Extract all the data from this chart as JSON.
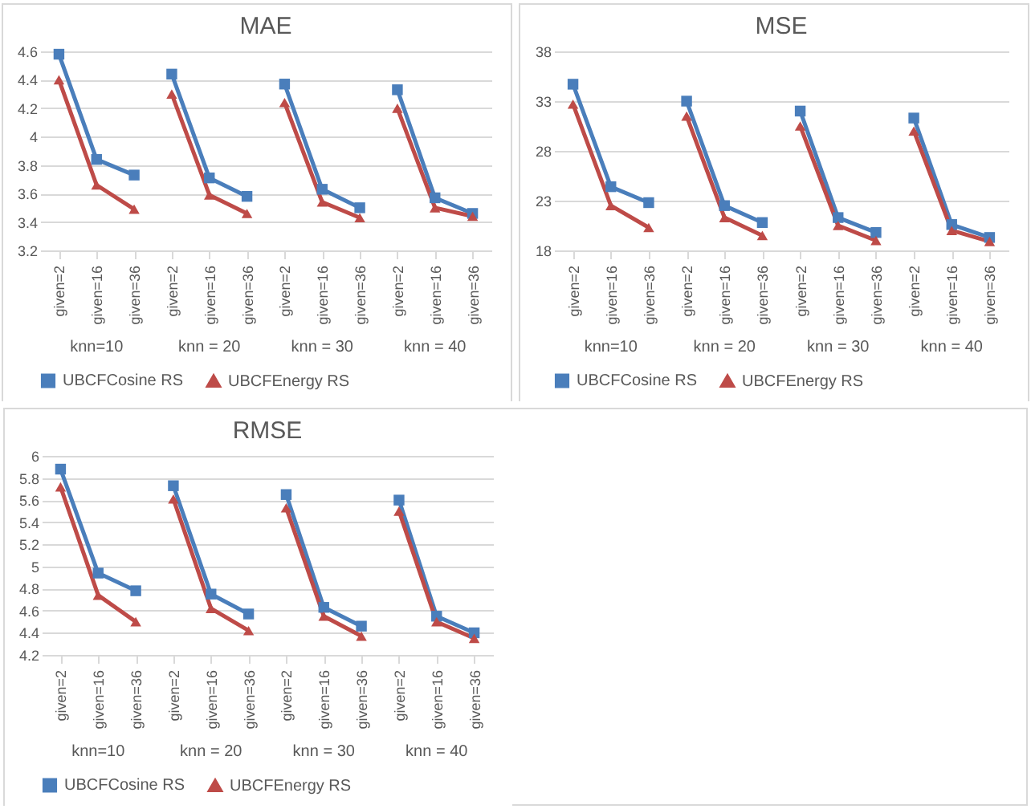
{
  "chart_data": [
    {
      "type": "line",
      "title": "MAE",
      "categories": [
        "given=2",
        "given=16",
        "given=36",
        "given=2",
        "given=16",
        "given=36",
        "given=2",
        "given=16",
        "given=36",
        "given=2",
        "given=16",
        "given=36"
      ],
      "annotations": [
        "knn=10",
        "knn = 20",
        "knn = 30",
        "knn = 40"
      ],
      "series": [
        {
          "name": "UBCFCosine RS",
          "color": "#4a7ebb",
          "marker": "square",
          "values": [
            4.58,
            3.84,
            3.73,
            4.44,
            3.71,
            3.58,
            4.37,
            3.63,
            3.5,
            4.33,
            3.57,
            3.46
          ]
        },
        {
          "name": "UBCFEnergy RS",
          "color": "#be4b48",
          "marker": "triangle",
          "values": [
            4.4,
            3.66,
            3.49,
            4.3,
            3.59,
            3.46,
            4.24,
            3.54,
            3.43,
            4.2,
            3.5,
            3.44
          ]
        }
      ],
      "ylim": [
        3.2,
        4.6
      ],
      "yticks": [
        3.2,
        3.4,
        3.6,
        3.8,
        4,
        4.2,
        4.4,
        4.6
      ],
      "grid": "y",
      "legend": "bottom"
    },
    {
      "type": "line",
      "title": "MSE",
      "categories": [
        "given=2",
        "given=16",
        "given=36",
        "given=2",
        "given=16",
        "given=36",
        "given=2",
        "given=16",
        "given=36",
        "given=2",
        "given=16",
        "given=36"
      ],
      "annotations": [
        "knn=10",
        "knn = 20",
        "knn = 30",
        "knn = 40"
      ],
      "series": [
        {
          "name": "UBCFCosine RS",
          "color": "#4a7ebb",
          "marker": "square",
          "values": [
            34.7,
            24.4,
            22.8,
            33.0,
            22.5,
            20.8,
            32.0,
            21.3,
            19.8,
            31.3,
            20.6,
            19.3
          ]
        },
        {
          "name": "UBCFEnergy RS",
          "color": "#be4b48",
          "marker": "triangle",
          "values": [
            32.7,
            22.5,
            20.3,
            31.5,
            21.3,
            19.5,
            30.5,
            20.5,
            19.0,
            30.0,
            20.0,
            18.9
          ]
        }
      ],
      "ylim": [
        18,
        38
      ],
      "yticks": [
        18,
        23,
        28,
        33,
        38
      ],
      "grid": "y",
      "legend": "bottom"
    },
    {
      "type": "line",
      "title": "RMSE",
      "categories": [
        "given=2",
        "given=16",
        "given=36",
        "given=2",
        "given=16",
        "given=36",
        "given=2",
        "given=16",
        "given=36",
        "given=2",
        "given=16",
        "given=36"
      ],
      "annotations": [
        "knn=10",
        "knn = 20",
        "knn = 30",
        "knn = 40"
      ],
      "series": [
        {
          "name": "UBCFCosine RS",
          "color": "#4a7ebb",
          "marker": "square",
          "values": [
            5.88,
            4.94,
            4.78,
            5.73,
            4.75,
            4.57,
            5.65,
            4.63,
            4.46,
            5.6,
            4.55,
            4.4
          ]
        },
        {
          "name": "UBCFEnergy RS",
          "color": "#be4b48",
          "marker": "triangle",
          "values": [
            5.72,
            4.74,
            4.5,
            5.61,
            4.62,
            4.42,
            5.53,
            4.55,
            4.37,
            5.5,
            4.5,
            4.35
          ]
        }
      ],
      "ylim": [
        4.2,
        6
      ],
      "yticks": [
        4.2,
        4.4,
        4.6,
        4.8,
        5,
        5.2,
        5.4,
        5.6,
        5.8,
        6
      ],
      "grid": "y",
      "legend": "bottom"
    }
  ]
}
